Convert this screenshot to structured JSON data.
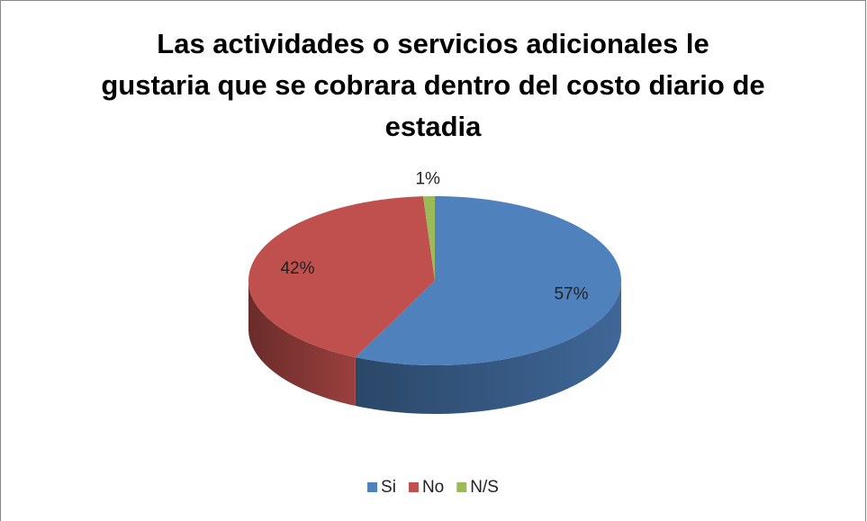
{
  "chart_data": {
    "type": "pie",
    "title": "Las actividades o servicios adicionales le gustaria que se cobrara dentro del costo diario de estadia",
    "categories": [
      "Si",
      "No",
      "N/S"
    ],
    "values": [
      57,
      42,
      1
    ],
    "value_labels": [
      "57%",
      "42%",
      "1%"
    ],
    "colors": [
      "#4f81bd",
      "#c0504d",
      "#9bbb59"
    ],
    "legend": "bottom"
  }
}
